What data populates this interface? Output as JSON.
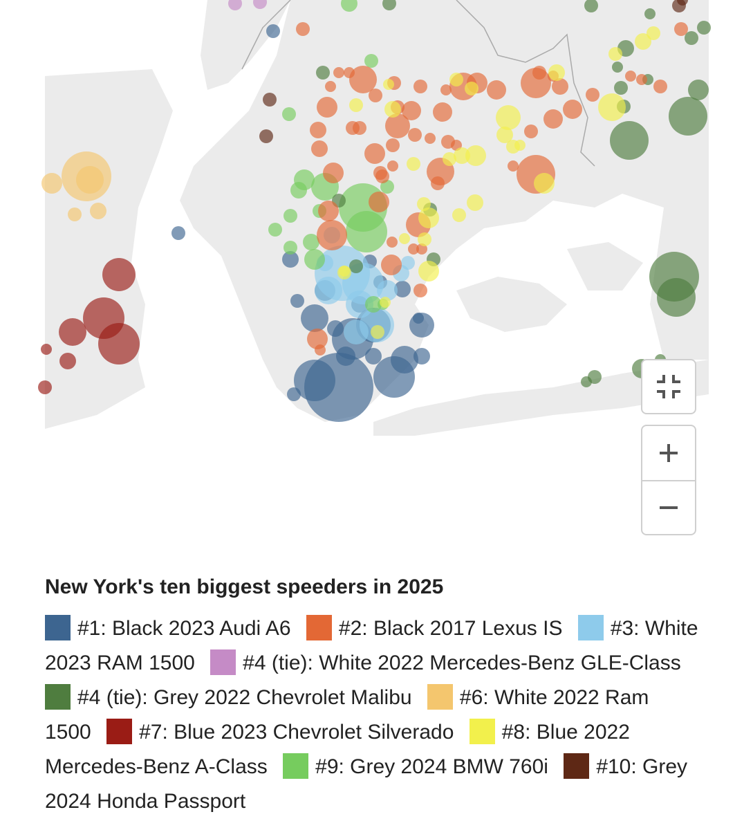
{
  "map": {
    "colors": {
      "land": "#ebebeb",
      "background": "#ffffff",
      "border": "#aaaaaa"
    },
    "controls": {
      "fullscreen_icon": "exit-fullscreen-icon",
      "zoom_in_icon": "plus-icon",
      "zoom_out_icon": "minus-icon"
    }
  },
  "legend": {
    "title": "New York's ten biggest speeders in 2025",
    "items": [
      {
        "label": "#1: Black 2023 Audi A6",
        "color": "#3d6590"
      },
      {
        "label": "#2: Black 2017 Lexus IS",
        "color": "#e36835"
      },
      {
        "label": "#3: White 2023 RAM 1500",
        "color": "#8ecbeb"
      },
      {
        "label": "#4 (tie): White 2022 Mercedes-Benz GLE-Class",
        "color": "#c58bc6"
      },
      {
        "label": "#4 (tie): Grey 2022 Chevrolet Malibu",
        "color": "#4f7d3f"
      },
      {
        "label": "#6: White 2022 Ram 1500",
        "color": "#f4c66e"
      },
      {
        "label": "#7: Blue 2023 Chevrolet Silverado",
        "color": "#9a1c15"
      },
      {
        "label": "#8: Blue 2022 Mercedes-Benz A-Class",
        "color": "#f2f04c"
      },
      {
        "label": "#9: Grey 2024 BMW 760i",
        "color": "#76cc5e"
      },
      {
        "label": "#10: Grey 2024 Honda Passport",
        "color": "#5e2815"
      }
    ]
  }
}
